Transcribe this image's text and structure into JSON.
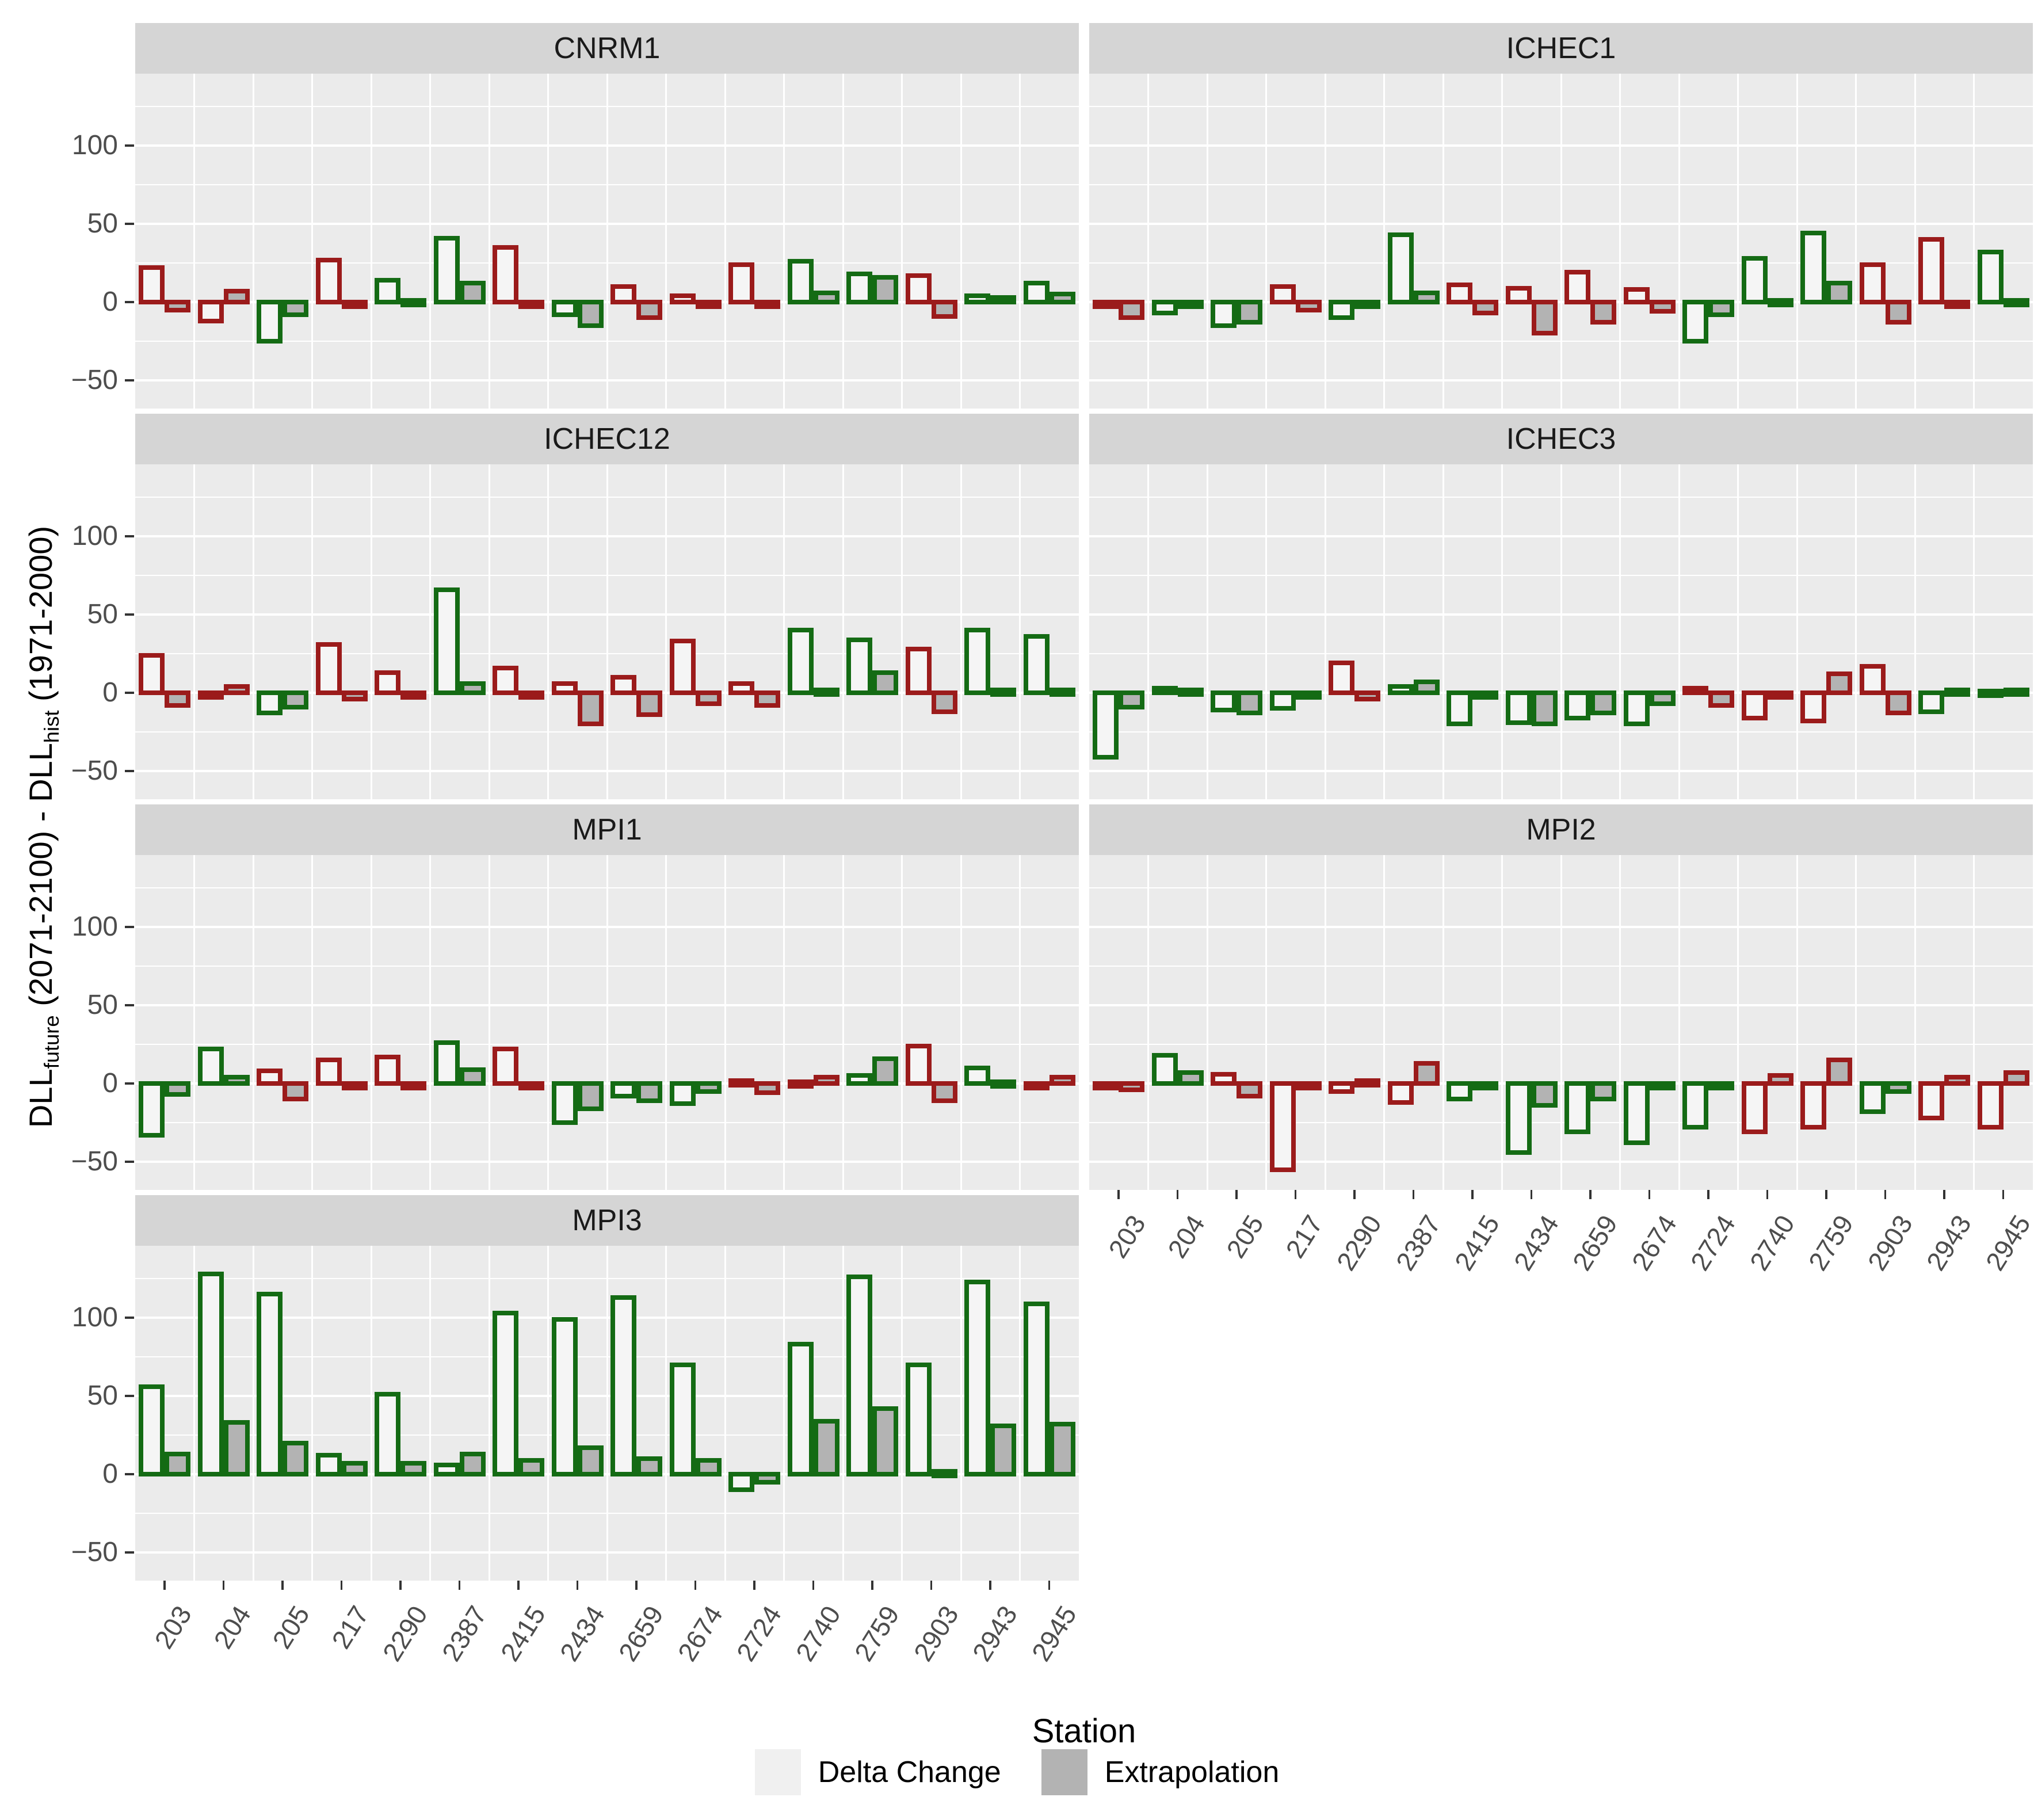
{
  "figure_title": "",
  "x_axis_title": "Station",
  "ylabel_parts": {
    "p1": "DLL",
    "s1": "future",
    "p2": " (2071-2100) - DLL",
    "s2": "hist",
    "p3": " (1971-2000)"
  },
  "colors": {
    "red_outline": "#9B1B1B",
    "green_outline": "#146B14",
    "delta_change_fill": "#F5F5F5",
    "extrapolation_fill": "#B3B3B3",
    "panel_bg": "#EBEBEB",
    "strip_bg": "#D5D5D5",
    "grid": "#FFFFFF",
    "tick_text": "#4D4D4D"
  },
  "chart_data": {
    "type": "bar",
    "title": "",
    "xlabel": "Station",
    "ylabel": "DLL_future (2071-2100) - DLL_hist (1971-2000)",
    "ylim": [
      -68,
      146
    ],
    "yticks": [
      100,
      50,
      0,
      -50
    ],
    "yticks_minor": [
      125,
      75,
      25,
      -25
    ],
    "grid": true,
    "legend_position": "bottom",
    "series_names": [
      "Delta Change",
      "Extrapolation"
    ],
    "stations": [
      "203",
      "204",
      "205",
      "217",
      "2290",
      "2387",
      "2415",
      "2434",
      "2659",
      "2674",
      "2724",
      "2740",
      "2759",
      "2903",
      "2943",
      "2945"
    ],
    "facets": [
      {
        "label": "CNRM1",
        "row": 0,
        "col": 0,
        "x_axis": false,
        "delta_change": [
          22,
          -12,
          -25,
          27,
          14,
          41,
          35,
          -8,
          10,
          4,
          24,
          26,
          18,
          17,
          4,
          12
        ],
        "extrapolation": [
          -5,
          7,
          -8,
          -2,
          1,
          12,
          -2,
          -15,
          -10,
          -3,
          -3,
          6,
          16,
          -9,
          3,
          5
        ],
        "outline": [
          "red",
          "red",
          "green",
          "red",
          "green",
          "green",
          "red",
          "green",
          "red",
          "red",
          "red",
          "green",
          "green",
          "red",
          "green",
          "green"
        ]
      },
      {
        "label": "ICHEC1",
        "row": 0,
        "col": 1,
        "x_axis": false,
        "delta_change": [
          -2,
          -7,
          -15,
          10,
          -10,
          43,
          11,
          9,
          19,
          8,
          -25,
          28,
          44,
          24,
          40,
          32
        ],
        "extrapolation": [
          -10,
          -2,
          -13,
          -5,
          -3,
          6,
          -7,
          -20,
          -13,
          -6,
          -8,
          1,
          12,
          -13,
          -1,
          1
        ],
        "outline": [
          "red",
          "green",
          "green",
          "red",
          "green",
          "green",
          "red",
          "red",
          "red",
          "red",
          "green",
          "green",
          "green",
          "red",
          "red",
          "green"
        ]
      },
      {
        "label": "ICHEC12",
        "row": 1,
        "col": 0,
        "x_axis": false,
        "delta_change": [
          24,
          -2,
          -13,
          31,
          13,
          66,
          16,
          6,
          10,
          33,
          6,
          40,
          34,
          28,
          40,
          36
        ],
        "extrapolation": [
          -8,
          4,
          -9,
          -4,
          -3,
          6,
          -3,
          -20,
          -14,
          -7,
          -8,
          2,
          13,
          -12,
          2,
          2
        ],
        "outline": [
          "red",
          "red",
          "green",
          "red",
          "red",
          "green",
          "red",
          "red",
          "red",
          "red",
          "red",
          "green",
          "green",
          "red",
          "green",
          "green"
        ]
      },
      {
        "label": "ICHEC3",
        "row": 1,
        "col": 1,
        "x_axis": false,
        "delta_change": [
          -41,
          3,
          -11,
          -10,
          19,
          4,
          -20,
          -19,
          -16,
          -20,
          3,
          -16,
          -18,
          17,
          -12,
          1
        ],
        "extrapolation": [
          -9,
          2,
          -13,
          -3,
          -4,
          7,
          -2,
          -20,
          -13,
          -7,
          -8,
          -1,
          12,
          -13,
          2,
          2
        ],
        "outline": [
          "green",
          "green",
          "green",
          "green",
          "red",
          "green",
          "green",
          "green",
          "green",
          "green",
          "red",
          "red",
          "red",
          "red",
          "green",
          "green"
        ]
      },
      {
        "label": "MPI1",
        "row": 2,
        "col": 0,
        "x_axis": false,
        "delta_change": [
          -33,
          22,
          8,
          15,
          17,
          26,
          22,
          -25,
          -8,
          -13,
          2,
          1,
          5,
          24,
          10,
          -1
        ],
        "extrapolation": [
          -7,
          4,
          -10,
          -1,
          -2,
          9,
          -2,
          -16,
          -11,
          -5,
          -6,
          4,
          16,
          -11,
          1,
          4
        ],
        "outline": [
          "green",
          "green",
          "red",
          "red",
          "red",
          "green",
          "red",
          "green",
          "green",
          "green",
          "red",
          "red",
          "green",
          "red",
          "green",
          "red"
        ]
      },
      {
        "label": "MPI2",
        "row": 2,
        "col": 1,
        "x_axis": true,
        "delta_change": [
          -2,
          18,
          6,
          -55,
          -5,
          -12,
          -10,
          -44,
          -31,
          -38,
          -28,
          -31,
          -28,
          -18,
          -22,
          -28
        ],
        "extrapolation": [
          -4,
          7,
          -8,
          -1,
          2,
          13,
          -1,
          -14,
          -10,
          -2,
          -2,
          5,
          15,
          -5,
          4,
          7
        ],
        "outline": [
          "red",
          "green",
          "red",
          "red",
          "red",
          "red",
          "green",
          "green",
          "green",
          "green",
          "green",
          "red",
          "red",
          "green",
          "red",
          "red"
        ]
      },
      {
        "label": "MPI3",
        "row": 3,
        "col": 0,
        "x_axis": true,
        "delta_change": [
          56,
          128,
          115,
          12,
          51,
          6,
          103,
          99,
          113,
          70,
          -10,
          83,
          126,
          70,
          123,
          109
        ],
        "extrapolation": [
          13,
          33,
          20,
          7,
          7,
          13,
          9,
          17,
          10,
          9,
          -5,
          34,
          42,
          2,
          31,
          32
        ],
        "outline": [
          "green",
          "green",
          "green",
          "green",
          "green",
          "green",
          "green",
          "green",
          "green",
          "green",
          "green",
          "green",
          "green",
          "green",
          "green",
          "green"
        ]
      }
    ]
  }
}
